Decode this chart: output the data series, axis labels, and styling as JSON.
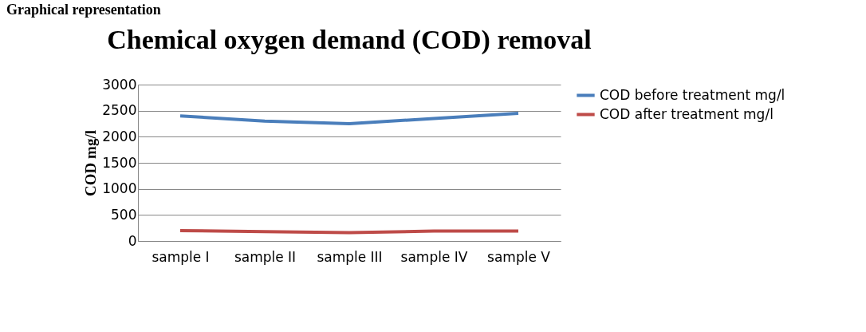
{
  "chart_data": {
    "type": "line",
    "title": "Chemical oxygen demand (COD) removal",
    "ylabel": "COD mg/l",
    "annotations": [
      "Graphical representation"
    ],
    "categories": [
      "sample I",
      "sample II",
      "sample III",
      "sample IV",
      "sample V"
    ],
    "series": [
      {
        "name": "COD before treatment mg/l",
        "color": "#4a7ebb",
        "values": [
          2400,
          2300,
          2250,
          2350,
          2450
        ]
      },
      {
        "name": "COD after treatment mg/l",
        "color": "#be4b48",
        "values": [
          200,
          180,
          160,
          190,
          190
        ]
      }
    ],
    "ylim": [
      0,
      3000
    ],
    "yticks": [
      0,
      500,
      1000,
      1500,
      2000,
      2500,
      3000
    ],
    "grid": "y",
    "legend": "right",
    "marker": "none",
    "line_style": "solid"
  }
}
